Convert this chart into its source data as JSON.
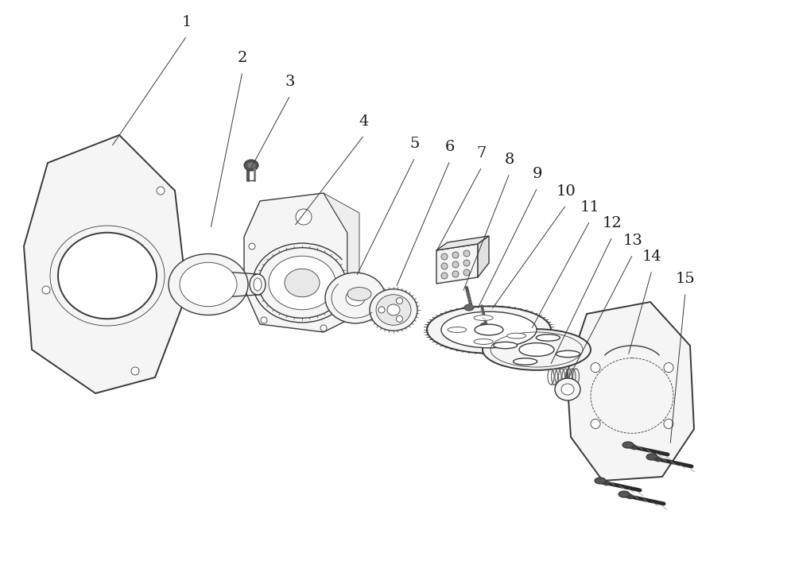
{
  "bg_color": "#ffffff",
  "lc": "#3a3a3a",
  "lc_dark": "#1a1a1a",
  "lw": 1.0,
  "lw_thin": 0.6,
  "lw_thick": 1.4,
  "label_fontsize": 14,
  "label_color": "#1a1a1a",
  "label_data": [
    [
      "1",
      235,
      45,
      140,
      185
    ],
    [
      "2",
      305,
      90,
      265,
      288
    ],
    [
      "3",
      365,
      120,
      315,
      213
    ],
    [
      "4",
      458,
      170,
      370,
      285
    ],
    [
      "5",
      522,
      198,
      448,
      348
    ],
    [
      "6",
      566,
      202,
      498,
      362
    ],
    [
      "7",
      606,
      210,
      548,
      318
    ],
    [
      "8",
      641,
      218,
      582,
      368
    ],
    [
      "9",
      676,
      236,
      600,
      390
    ],
    [
      "10",
      712,
      258,
      618,
      390
    ],
    [
      "11",
      742,
      278,
      668,
      415
    ],
    [
      "12",
      770,
      298,
      692,
      460
    ],
    [
      "13",
      796,
      320,
      714,
      478
    ],
    [
      "14",
      820,
      340,
      790,
      448
    ],
    [
      "15",
      862,
      368,
      843,
      560
    ]
  ]
}
